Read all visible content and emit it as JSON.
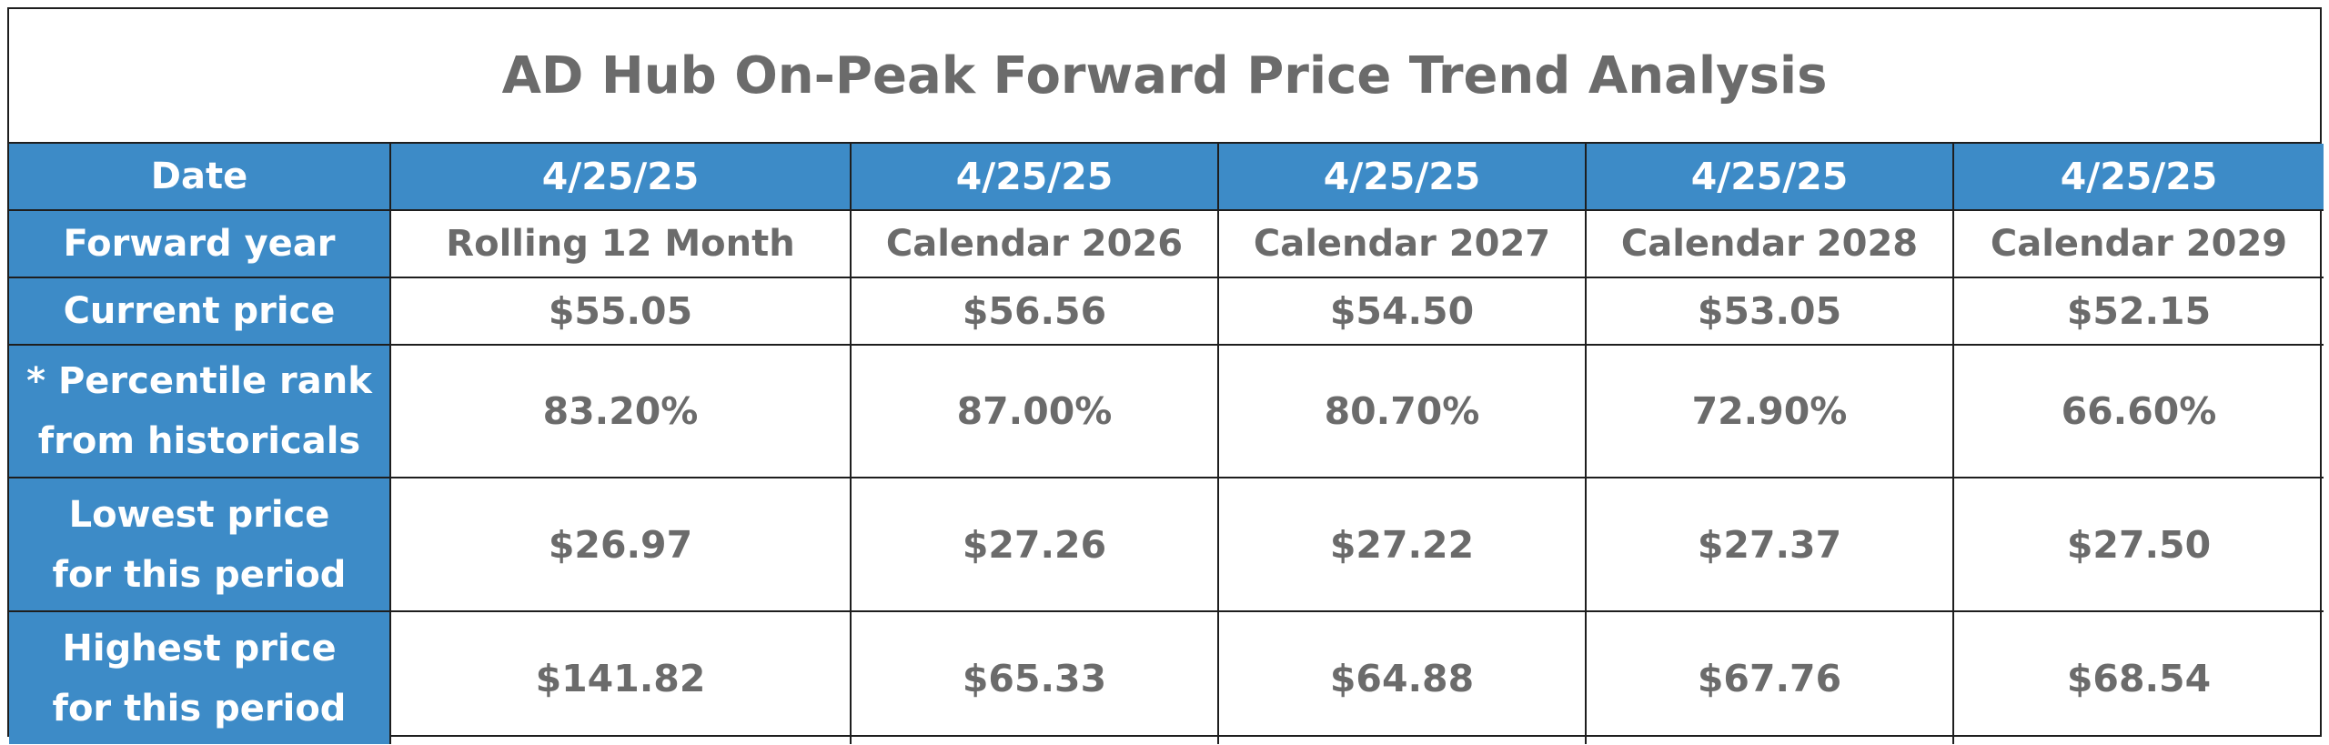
{
  "title": "AD Hub On-Peak Forward Price Trend Analysis",
  "colors": {
    "header_blue": "#3d8bc7",
    "text_gray": "#6b6b6b",
    "border": "#1e1e1e"
  },
  "table": {
    "row_labels": {
      "date": "Date",
      "forward_year": "Forward year",
      "current_price": "Current price",
      "percentile_line1": "* Percentile rank",
      "percentile_line2": "from historicals",
      "lowest_line1": "Lowest price",
      "lowest_line2": "for this period",
      "highest_line1": "Highest price",
      "highest_line2": "for this period"
    },
    "columns": [
      {
        "date": "4/25/25",
        "forward_year": "Rolling 12 Month",
        "current_price": "$55.05",
        "percentile": "83.20%",
        "lowest": "$26.97",
        "highest": "$141.82"
      },
      {
        "date": "4/25/25",
        "forward_year": "Calendar 2026",
        "current_price": "$56.56",
        "percentile": "87.00%",
        "lowest": "$27.26",
        "highest": "$65.33"
      },
      {
        "date": "4/25/25",
        "forward_year": "Calendar 2027",
        "current_price": "$54.50",
        "percentile": "80.70%",
        "lowest": "$27.22",
        "highest": "$64.88"
      },
      {
        "date": "4/25/25",
        "forward_year": "Calendar 2028",
        "current_price": "$53.05",
        "percentile": "72.90%",
        "lowest": "$27.37",
        "highest": "$67.76"
      },
      {
        "date": "4/25/25",
        "forward_year": "Calendar 2029",
        "current_price": "$52.15",
        "percentile": "66.60%",
        "lowest": "$27.50",
        "highest": "$68.54"
      }
    ]
  }
}
